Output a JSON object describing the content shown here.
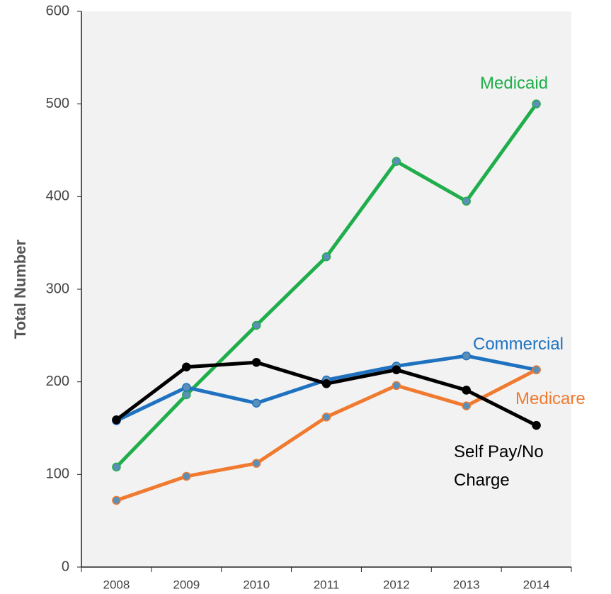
{
  "chart_data": {
    "type": "line",
    "y_label": "Total Number",
    "categories": [
      "2008",
      "2009",
      "2010",
      "2011",
      "2012",
      "2013",
      "2014"
    ],
    "series": [
      {
        "name": "Medicaid",
        "color": "#1fae4b",
        "values": [
          108,
          186,
          261,
          335,
          438,
          395,
          500
        ]
      },
      {
        "name": "Commercial",
        "color": "#1f72c0",
        "values": [
          158,
          194,
          177,
          202,
          217,
          228,
          213
        ]
      },
      {
        "name": "Medicare",
        "color": "#f07a30",
        "values": [
          72,
          98,
          112,
          162,
          196,
          174,
          213
        ]
      },
      {
        "name": "Self Pay/No Charge",
        "color": "#000000",
        "values": [
          159,
          216,
          221,
          198,
          213,
          191,
          153
        ]
      }
    ],
    "ylim": [
      0,
      600
    ],
    "yticks": [
      0,
      100,
      200,
      300,
      400,
      500,
      600
    ]
  }
}
